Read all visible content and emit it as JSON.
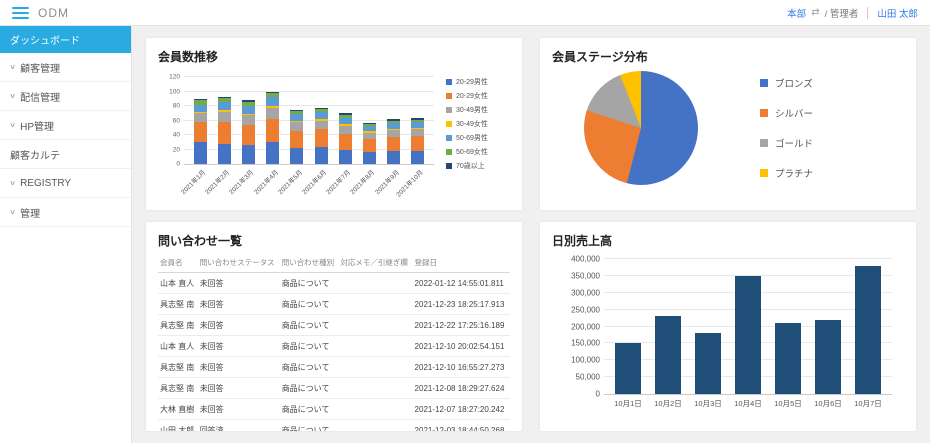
{
  "app": {
    "title": "ODM"
  },
  "header": {
    "org_link": "本部",
    "role_text": "/ 管理者",
    "user_link": "山田 太郎"
  },
  "sidebar": {
    "items": [
      {
        "label": "ダッシュボード",
        "active": true,
        "chevron": false
      },
      {
        "label": "顧客管理",
        "active": false,
        "chevron": true
      },
      {
        "label": "配信管理",
        "active": false,
        "chevron": true
      },
      {
        "label": "HP管理",
        "active": false,
        "chevron": true
      },
      {
        "label": "顧客カルテ",
        "active": false,
        "chevron": false
      },
      {
        "label": "REGISTRY",
        "active": false,
        "chevron": true
      },
      {
        "label": "管理",
        "active": false,
        "chevron": true
      }
    ]
  },
  "panels": {
    "member_trend": {
      "title": "会員数推移"
    },
    "stage_distribution": {
      "title": "会員ステージ分布"
    },
    "inquiries": {
      "title": "問い合わせ一覧"
    },
    "daily_sales": {
      "title": "日別売上高"
    }
  },
  "inquiry_table": {
    "headers": [
      "会員名",
      "問い合わせステータス",
      "問い合わせ種別",
      "対応メモ／引継ぎ欄",
      "登録日"
    ],
    "rows": [
      [
        "山本 直人",
        "未回答",
        "商品について",
        "",
        "2022-01-12 14:55:01.811"
      ],
      [
        "具志堅 南",
        "未回答",
        "商品について",
        "",
        "2021-12-23 18:25:17.913"
      ],
      [
        "具志堅 南",
        "未回答",
        "商品について",
        "",
        "2021-12-22 17:25:16.189"
      ],
      [
        "山本 直人",
        "未回答",
        "商品について",
        "",
        "2021-12-10 20:02:54.151"
      ],
      [
        "具志堅 南",
        "未回答",
        "商品について",
        "",
        "2021-12-10 16:55:27.273"
      ],
      [
        "具志堅 南",
        "未回答",
        "商品について",
        "",
        "2021-12-08 18:29:27.624"
      ],
      [
        "大林 直樹",
        "未回答",
        "商品について",
        "",
        "2021-12-07 18:27:20.242"
      ],
      [
        "山田 太郎",
        "回答済",
        "商品について",
        "",
        "2021-12-03 18:44:50.268"
      ]
    ]
  },
  "chart_data": [
    {
      "type": "bar",
      "stacked": true,
      "title": "会員数推移",
      "categories": [
        "2021年1月",
        "2021年2月",
        "2021年3月",
        "2021年4月",
        "2021年5月",
        "2021年6月",
        "2021年7月",
        "2021年8月",
        "2021年9月",
        "2021年10月"
      ],
      "series": [
        {
          "name": "20-29男性",
          "color": "#4472c4",
          "values": [
            30,
            28,
            26,
            30,
            22,
            24,
            20,
            16,
            18,
            18
          ]
        },
        {
          "name": "20-29女性",
          "color": "#ed7d31",
          "values": [
            28,
            30,
            28,
            32,
            24,
            24,
            22,
            18,
            19,
            20
          ]
        },
        {
          "name": "30-49男性",
          "color": "#a5a5a5",
          "values": [
            12,
            14,
            13,
            15,
            12,
            12,
            11,
            9,
            10,
            10
          ]
        },
        {
          "name": "30-49女性",
          "color": "#ffc000",
          "values": [
            2,
            2,
            2,
            3,
            2,
            2,
            2,
            2,
            2,
            2
          ]
        },
        {
          "name": "50-69男性",
          "color": "#5b9bd5",
          "values": [
            10,
            11,
            11,
            12,
            9,
            10,
            9,
            7,
            8,
            8
          ]
        },
        {
          "name": "50-69女性",
          "color": "#70ad47",
          "values": [
            6,
            6,
            6,
            6,
            4,
            4,
            4,
            3,
            3,
            3
          ]
        },
        {
          "name": "70歳以上",
          "color": "#264478",
          "values": [
            2,
            2,
            2,
            2,
            2,
            2,
            2,
            2,
            2,
            2
          ]
        }
      ],
      "ylim": [
        0,
        120
      ],
      "ytick_step": 20,
      "grid": true,
      "legend_position": "right"
    },
    {
      "type": "pie",
      "title": "会員ステージ分布",
      "labels": [
        "ブロンズ",
        "シルバー",
        "ゴールド",
        "プラチナ"
      ],
      "values": [
        54,
        26,
        14,
        6
      ],
      "colors": [
        "#4472c4",
        "#ed7d31",
        "#a5a5a5",
        "#ffc000"
      ],
      "legend_position": "right"
    },
    {
      "type": "bar",
      "title": "日別売上高",
      "categories": [
        "10月1日",
        "10月2日",
        "10月3日",
        "10月4日",
        "10月5日",
        "10月6日",
        "10月7日"
      ],
      "values": [
        150000,
        230000,
        180000,
        350000,
        210000,
        220000,
        380000
      ],
      "color": "#1f4e79",
      "ylim": [
        0,
        400000
      ],
      "ytick_step": 50000,
      "grid": true
    }
  ]
}
